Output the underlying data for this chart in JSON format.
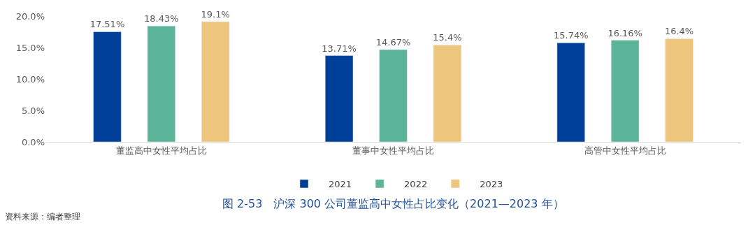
{
  "chart_data": {
    "type": "bar",
    "title": "图 2-53　沪深 300 公司董监高中女性占比变化（2021—2023 年）",
    "categories": [
      "董监高中女性平均占比",
      "董事中女性平均占比",
      "高管中女性平均占比"
    ],
    "series": [
      {
        "name": "2021",
        "color": "#003f98",
        "values": [
          17.51,
          13.71,
          15.74
        ],
        "value_labels": [
          "17.51%",
          "13.71%",
          "15.74%"
        ]
      },
      {
        "name": "2022",
        "color": "#5bb497",
        "values": [
          18.43,
          14.67,
          16.16
        ],
        "value_labels": [
          "18.43%",
          "14.67%",
          "16.16%"
        ]
      },
      {
        "name": "2023",
        "color": "#eec57d",
        "values": [
          19.1,
          15.4,
          16.4
        ],
        "value_labels": [
          "19.1%",
          "15.4%",
          "16.4%"
        ]
      }
    ],
    "ylim": [
      0,
      20
    ],
    "yticks": [
      {
        "value": 0,
        "label": "0.0%"
      },
      {
        "value": 5,
        "label": "5.0%"
      },
      {
        "value": 10,
        "label": "10.0%"
      },
      {
        "value": 15,
        "label": "15.0%"
      },
      {
        "value": 20,
        "label": "20.0%"
      }
    ],
    "grid": false,
    "legend": "bottom",
    "annotations": [
      "资料来源：编者整理"
    ]
  }
}
